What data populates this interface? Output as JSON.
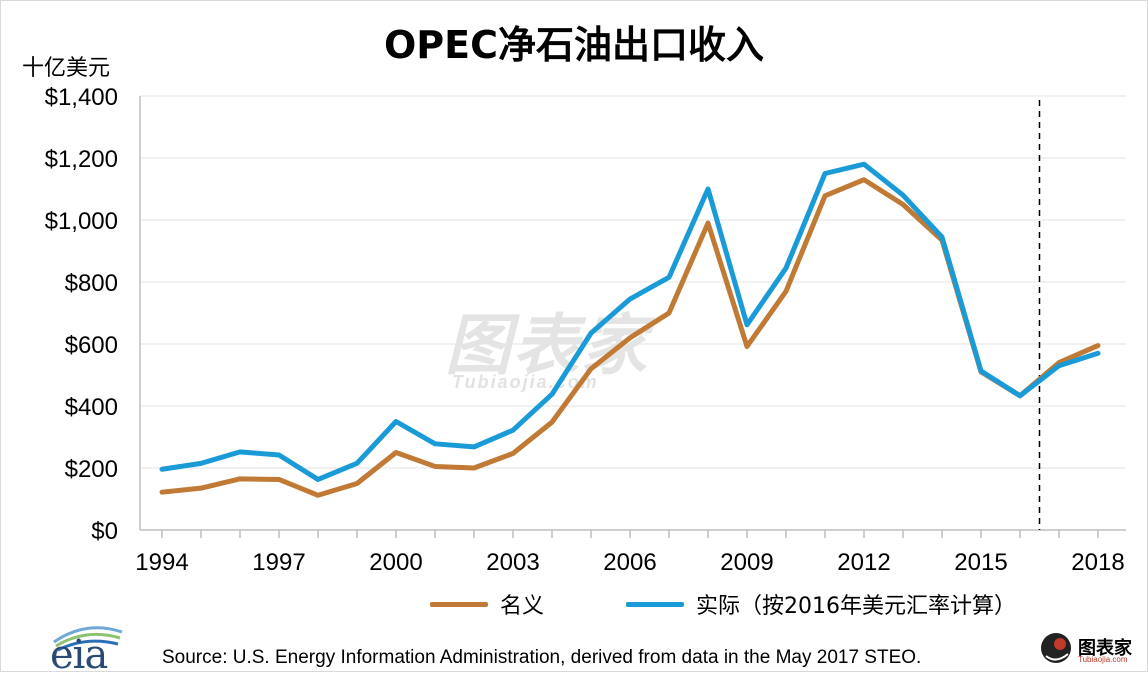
{
  "chart_data": {
    "type": "line",
    "title": "OPEC净石油出口收入",
    "ylabel": "十亿美元",
    "xlabel": "",
    "ylim": [
      0,
      1400
    ],
    "y_ticks": [
      "$0",
      "$200",
      "$400",
      "$600",
      "$800",
      "$1,000",
      "$1,200",
      "$1,400"
    ],
    "y_tick_values": [
      0,
      200,
      400,
      600,
      800,
      1000,
      1200,
      1400
    ],
    "x_tick_labels": [
      "1994",
      "1997",
      "2000",
      "2003",
      "2006",
      "2009",
      "2012",
      "2015",
      "2018"
    ],
    "x": [
      1994,
      1995,
      1996,
      1997,
      1998,
      1999,
      2000,
      2001,
      2002,
      2003,
      2004,
      2005,
      2006,
      2007,
      2008,
      2009,
      2010,
      2011,
      2012,
      2013,
      2014,
      2015,
      2016,
      2017,
      2018
    ],
    "forecast_start": 2016.5,
    "grid": true,
    "legend_position": "bottom-center",
    "series": [
      {
        "name": "名义",
        "color": "#c07a35",
        "values": [
          122,
          135,
          165,
          163,
          112,
          150,
          250,
          205,
          200,
          247,
          348,
          520,
          620,
          700,
          990,
          592,
          770,
          1078,
          1130,
          1050,
          935,
          510,
          433,
          540,
          595
        ]
      },
      {
        "name": "实际（按2016年美元汇率计算）",
        "color": "#1a9bd7",
        "values": [
          196,
          215,
          252,
          242,
          163,
          215,
          350,
          278,
          268,
          322,
          438,
          635,
          745,
          815,
          1100,
          662,
          845,
          1150,
          1180,
          1080,
          945,
          513,
          433,
          530,
          570
        ]
      }
    ]
  },
  "source": "Source: U.S. Energy Information Administration, derived from data in the May 2017 STEO.",
  "logos": {
    "eia": "eia",
    "watermark": "图表家",
    "watermark_sub": "Tubiaojia.com",
    "corner": "图表家",
    "corner_sub": "Tubiaojia.com"
  }
}
